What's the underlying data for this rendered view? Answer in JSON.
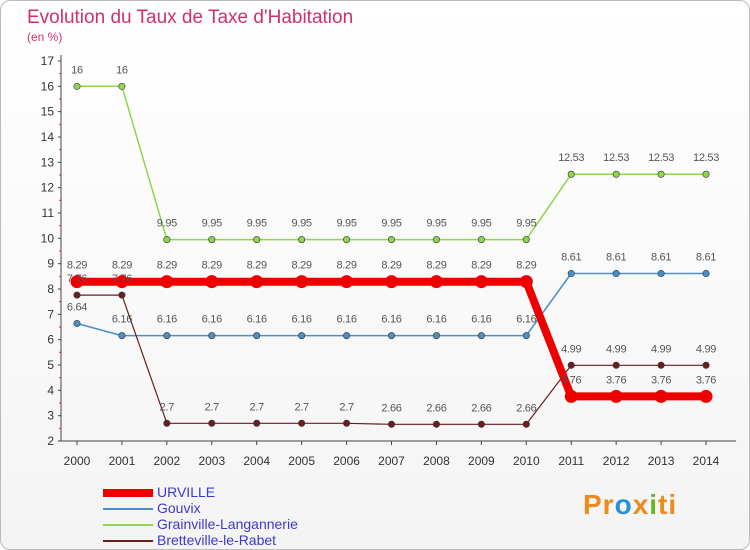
{
  "title": "Evolution du Taux de Taxe d'Habitation",
  "subtitle": "(en %)",
  "logo": {
    "parts": [
      "Pr",
      "o",
      "x",
      "i",
      "ti"
    ],
    "colors": [
      "#f08a1c",
      "#2a8fd8",
      "#f08a1c",
      "#6ab52a",
      "#f08a1c"
    ]
  },
  "chart_data": {
    "type": "line",
    "title": "Evolution du Taux de Taxe d'Habitation",
    "ylabel": "(en %)",
    "xlabel": "",
    "ylim": [
      2,
      17
    ],
    "yticks": [
      2,
      3,
      4,
      5,
      6,
      7,
      8,
      9,
      10,
      11,
      12,
      13,
      14,
      15,
      16,
      17
    ],
    "grid": false,
    "legend_position": "bottom-left",
    "categories": [
      "2000",
      "2001",
      "2002",
      "2003",
      "2004",
      "2005",
      "2006",
      "2007",
      "2008",
      "2009",
      "2010",
      "2011",
      "2012",
      "2013",
      "2014"
    ],
    "series": [
      {
        "name": "URVILLE",
        "color": "#ee0000",
        "values": [
          8.29,
          8.29,
          8.29,
          8.29,
          8.29,
          8.29,
          8.29,
          8.29,
          8.29,
          8.29,
          8.29,
          3.76,
          3.76,
          3.76,
          3.76
        ]
      },
      {
        "name": "Gouvix",
        "color": "#4a8fc8",
        "values": [
          6.64,
          6.16,
          6.16,
          6.16,
          6.16,
          6.16,
          6.16,
          6.16,
          6.16,
          6.16,
          6.16,
          8.61,
          8.61,
          8.61,
          8.61
        ]
      },
      {
        "name": "Grainville-Langannerie",
        "color": "#8ed64a",
        "values": [
          16,
          16,
          9.95,
          9.95,
          9.95,
          9.95,
          9.95,
          9.95,
          9.95,
          9.95,
          9.95,
          12.53,
          12.53,
          12.53,
          12.53
        ]
      },
      {
        "name": "Bretteville-le-Rabet",
        "color": "#6b1e1e",
        "values": [
          7.76,
          7.76,
          2.7,
          2.7,
          2.7,
          2.7,
          2.7,
          2.66,
          2.66,
          2.66,
          2.66,
          4.99,
          4.99,
          4.99,
          4.99
        ]
      }
    ],
    "data_labels": {
      "URVILLE": [
        "8.29",
        "8.29",
        "8.29",
        "8.29",
        "8.29",
        "8.29",
        "8.29",
        "8.29",
        "8.29",
        "8.29",
        "8.29",
        "3.76",
        "3.76",
        "3.76",
        "3.76"
      ],
      "Gouvix": [
        "6.64",
        "6.16",
        "6.16",
        "6.16",
        "6.16",
        "6.16",
        "6.16",
        "6.16",
        "6.16",
        "6.16",
        "6.16",
        "8.61",
        "8.61",
        "8.61",
        "8.61"
      ],
      "Grainville-Langannerie": [
        "16",
        "16",
        "9.95",
        "9.95",
        "9.95",
        "9.95",
        "9.95",
        "9.95",
        "9.95",
        "9.95",
        "9.95",
        "12.53",
        "12.53",
        "12.53",
        "12.53"
      ],
      "Bretteville-le-Rabet": [
        "7.76",
        "7.76",
        "2.7",
        "2.7",
        "2.7",
        "2.7",
        "2.7",
        "2.66",
        "2.66",
        "2.66",
        "2.66",
        "4.99",
        "4.99",
        "4.99",
        "4.99"
      ]
    }
  }
}
